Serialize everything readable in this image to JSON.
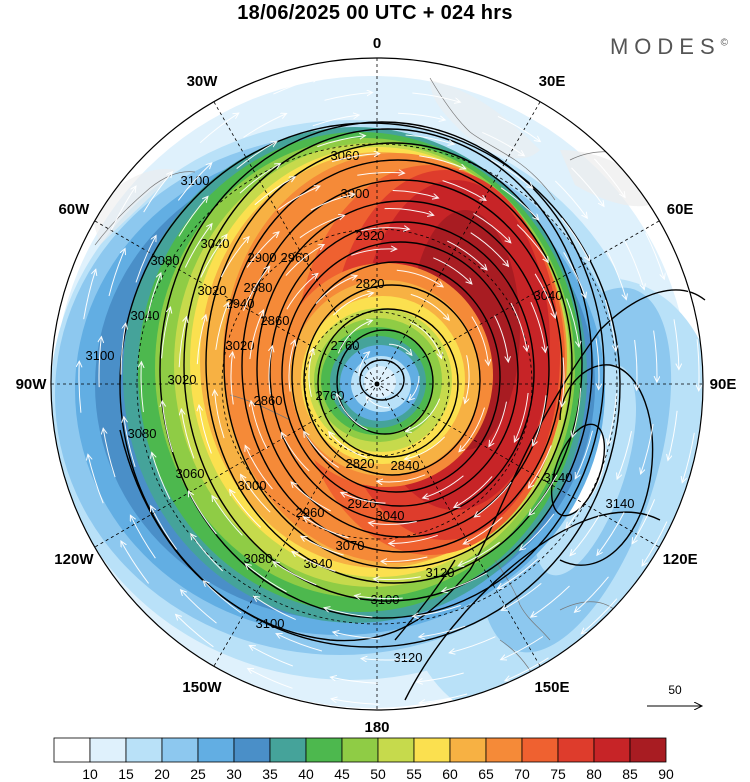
{
  "title": "18/06/2025  00 UTC  + 024 hrs",
  "brand": "MODES",
  "brand_mark": "©",
  "longitude_labels": [
    {
      "text": "0",
      "angle_deg": 0
    },
    {
      "text": "30E",
      "angle_deg": 30
    },
    {
      "text": "60E",
      "angle_deg": 60
    },
    {
      "text": "90E",
      "angle_deg": 90
    },
    {
      "text": "120E",
      "angle_deg": 120
    },
    {
      "text": "150E",
      "angle_deg": 150
    },
    {
      "text": "180",
      "angle_deg": 180
    },
    {
      "text": "150W",
      "angle_deg": 210
    },
    {
      "text": "120W",
      "angle_deg": 240
    },
    {
      "text": "90W",
      "angle_deg": 270
    },
    {
      "text": "60W",
      "angle_deg": 300
    },
    {
      "text": "30W",
      "angle_deg": 330
    }
  ],
  "contour_labels": [
    "3060",
    "3000",
    "2920",
    "2820",
    "2760",
    "2760",
    "2820",
    "2840",
    "2860",
    "2860",
    "2880",
    "2900",
    "2940",
    "3040",
    "3080",
    "3040",
    "3100",
    "3100",
    "3020",
    "3080",
    "3060",
    "3000",
    "2960",
    "2920",
    "3040",
    "3080",
    "3100",
    "3100",
    "3120",
    "3140",
    "3140",
    "3120",
    "3020",
    "3040",
    "3020",
    "2960",
    "3040",
    "3070"
  ],
  "colorbar": {
    "labels": [
      "10",
      "15",
      "20",
      "25",
      "30",
      "35",
      "40",
      "45",
      "50",
      "55",
      "60",
      "65",
      "70",
      "75",
      "80",
      "85",
      "90"
    ],
    "colors": [
      "#ffffff",
      "#dff1fc",
      "#b9e1f8",
      "#8dc8ef",
      "#62aee3",
      "#4a8fc8",
      "#45a39a",
      "#4db84e",
      "#8fcc45",
      "#c6da4c",
      "#fbe04f",
      "#f7b143",
      "#f58a38",
      "#ef6130",
      "#de3c2c",
      "#c72427",
      "#a81c22"
    ]
  },
  "reference_vector": {
    "label": "50"
  }
}
